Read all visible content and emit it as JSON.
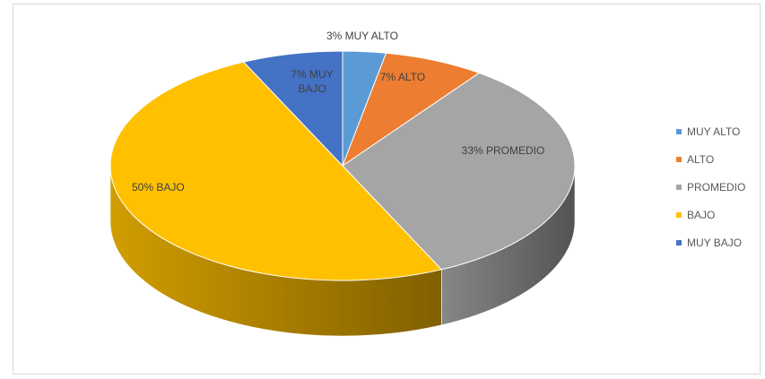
{
  "chart_data": {
    "type": "pie",
    "title": "",
    "categories": [
      "MUY ALTO",
      "ALTO",
      "PROMEDIO",
      "BAJO",
      "MUY BAJO"
    ],
    "values": [
      3,
      7,
      33,
      50,
      7
    ],
    "data_labels": [
      "3% MUY ALTO",
      "7% ALTO",
      "33% PROMEDIO",
      "50% BAJO",
      "7% MUY BAJO"
    ],
    "colors": [
      "#5b9bd5",
      "#ed7d31",
      "#a5a5a5",
      "#ffc000",
      "#4472c4"
    ],
    "style": "3d",
    "legend_position": "right"
  }
}
